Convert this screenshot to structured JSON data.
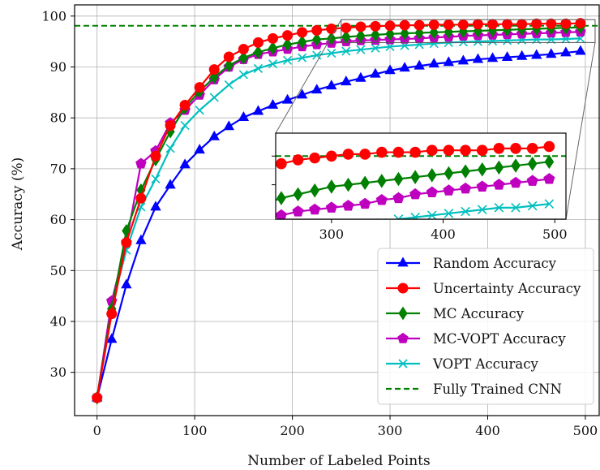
{
  "chart_data": {
    "type": "line",
    "xlabel": "Number of Labeled Points",
    "ylabel": "Accuracy (%)",
    "xlim": [
      -23,
      515
    ],
    "ylim": [
      21.5,
      102.2
    ],
    "xticks": [
      0,
      100,
      200,
      300,
      400,
      500
    ],
    "yticks": [
      30,
      40,
      50,
      60,
      70,
      80,
      90,
      100
    ],
    "grid": true,
    "legend_position": "lower-right",
    "x": [
      0,
      15,
      30,
      45,
      60,
      75,
      90,
      105,
      120,
      135,
      150,
      165,
      180,
      195,
      210,
      225,
      240,
      255,
      270,
      285,
      300,
      315,
      330,
      345,
      360,
      375,
      390,
      405,
      420,
      435,
      450,
      465,
      480,
      495
    ],
    "series": [
      {
        "name": "Random Accuracy",
        "color": "#0000ff",
        "marker": "triangle",
        "values": [
          25,
          36.5,
          47.2,
          55.9,
          62.5,
          66.8,
          70.8,
          73.7,
          76.3,
          78.3,
          80.1,
          81.3,
          82.5,
          83.5,
          84.5,
          85.5,
          86.3,
          87.1,
          87.8,
          88.6,
          89.3,
          89.8,
          90.2,
          90.6,
          90.9,
          91.2,
          91.5,
          91.7,
          91.9,
          92.1,
          92.3,
          92.5,
          92.8,
          93.1
        ]
      },
      {
        "name": "Uncertainty Accuracy",
        "color": "#ff0000",
        "marker": "circle",
        "values": [
          25,
          41.5,
          55.5,
          64.2,
          72.5,
          78.5,
          82.5,
          86.0,
          89.5,
          92.0,
          93.5,
          94.8,
          95.6,
          96.2,
          96.8,
          97.2,
          97.5,
          97.7,
          97.9,
          98.0,
          98.1,
          98.2,
          98.2,
          98.3,
          98.3,
          98.3,
          98.4,
          98.4,
          98.4,
          98.4,
          98.5,
          98.5,
          98.5,
          98.6
        ]
      },
      {
        "name": "MC Accuracy",
        "color": "#008000",
        "marker": "diamond",
        "values": [
          25,
          42.5,
          57.8,
          65.8,
          71.8,
          77.3,
          82.0,
          85.2,
          88.0,
          90.3,
          91.8,
          92.9,
          93.7,
          94.4,
          94.9,
          95.4,
          95.6,
          95.9,
          96.1,
          96.3,
          96.5,
          96.6,
          96.7,
          96.8,
          96.9,
          97.0,
          97.1,
          97.2,
          97.3,
          97.4,
          97.5,
          97.6,
          97.7,
          97.8
        ]
      },
      {
        "name": "MC-VOPT Accuracy",
        "color": "#bf00bf",
        "marker": "pentagon",
        "values": [
          25,
          44.0,
          55.5,
          71.0,
          73.5,
          79.0,
          81.5,
          84.5,
          87.5,
          90.0,
          91.5,
          92.5,
          93.0,
          93.5,
          94.0,
          94.4,
          94.7,
          95.0,
          95.2,
          95.3,
          95.4,
          95.5,
          95.6,
          95.8,
          95.9,
          96.1,
          96.2,
          96.3,
          96.4,
          96.5,
          96.6,
          96.7,
          96.8,
          96.9
        ]
      },
      {
        "name": "VOPT Accuracy",
        "color": "#00bfbf",
        "marker": "x",
        "values": [
          25,
          43.0,
          54.0,
          62.5,
          68.0,
          74.0,
          78.5,
          81.5,
          84.0,
          86.5,
          88.5,
          89.7,
          90.6,
          91.3,
          91.8,
          92.3,
          92.7,
          93.1,
          93.4,
          93.7,
          94.0,
          94.2,
          94.4,
          94.6,
          94.8,
          94.9,
          95.0,
          95.1,
          95.2,
          95.3,
          95.4,
          95.4,
          95.5,
          95.6
        ]
      }
    ],
    "reference_line": {
      "name": "Fully Trained CNN",
      "color": "#008000",
      "style": "dashed",
      "value": 98.1
    },
    "inset": {
      "xlim": [
        250,
        510
      ],
      "ylim": [
        94.8,
        99.3
      ],
      "xticks": [
        300,
        400,
        500
      ],
      "yticks": [
        96.6,
        98.1
      ]
    }
  }
}
